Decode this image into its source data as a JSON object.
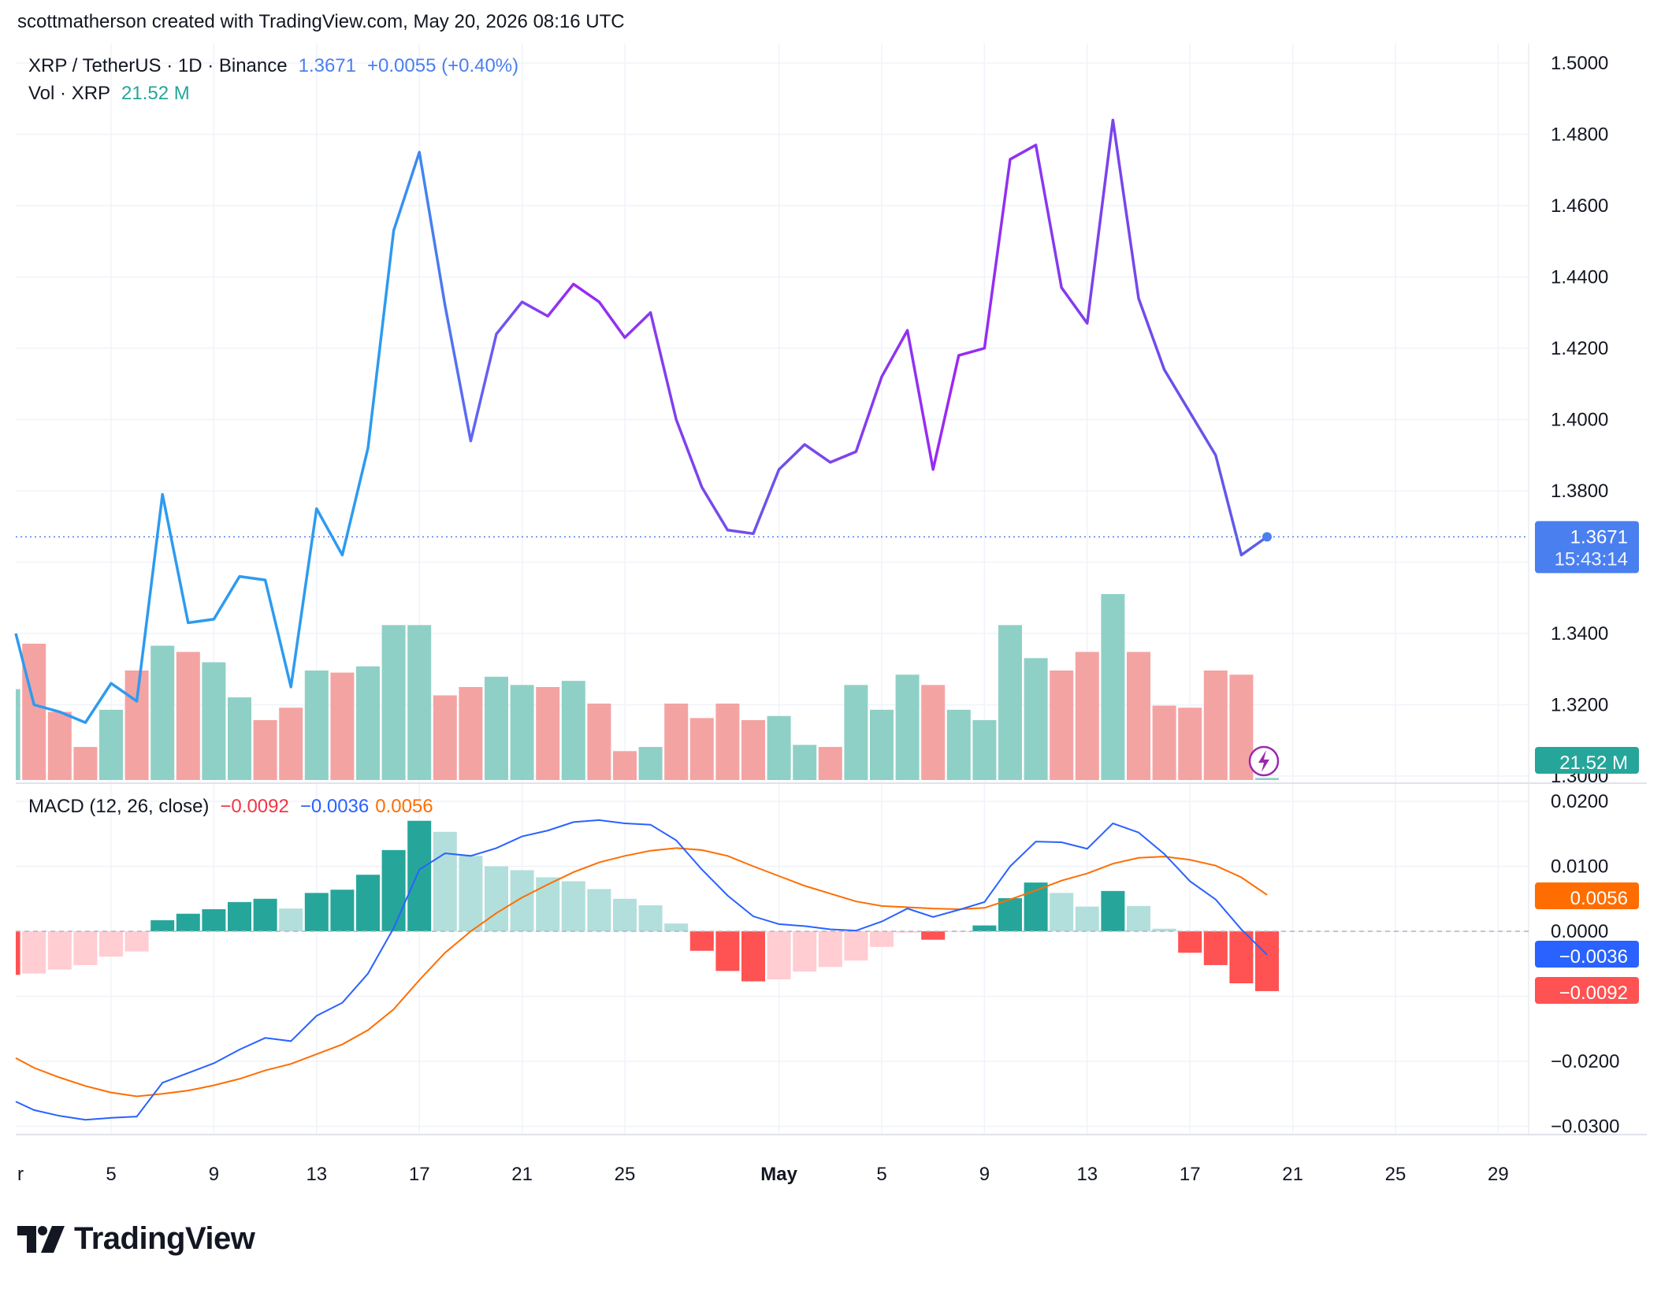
{
  "header": {
    "attribution": "scottmatherson created with TradingView.com, May 20, 2026 08:16 UTC"
  },
  "legend": {
    "symbol": "XRP / TetherUS · 1D · Binance",
    "last": "1.3671",
    "change": "+0.0055 (+0.40%)",
    "vol_label": "Vol · XRP",
    "vol_value": "21.52 M",
    "macd_label": "MACD (12, 26, close)",
    "macd_hist": "−0.0092",
    "macd_line": "−0.0036",
    "macd_signal": "0.0056"
  },
  "price_axis": {
    "ticks": [
      "1.5000",
      "1.4800",
      "1.4600",
      "1.4400",
      "1.4200",
      "1.4000",
      "1.3800",
      "1.3400",
      "1.3200",
      "1.3000"
    ],
    "last_price_label": "1.3671",
    "countdown": "15:43:14",
    "volume_label": "21.52 M"
  },
  "macd_axis": {
    "ticks": [
      "0.0200",
      "0.0100",
      "0.0000",
      "−0.0200",
      "−0.0300"
    ],
    "signal_label": "0.0056",
    "macd_label": "−0.0036",
    "hist_label": "−0.0092"
  },
  "time_axis": {
    "labels": [
      {
        "text": "r",
        "day": -4.05,
        "bold": false
      },
      {
        "text": "5",
        "day": 0,
        "bold": false
      },
      {
        "text": "9",
        "day": 4,
        "bold": false
      },
      {
        "text": "13",
        "day": 8,
        "bold": false
      },
      {
        "text": "17",
        "day": 12,
        "bold": false
      },
      {
        "text": "21",
        "day": 16,
        "bold": false
      },
      {
        "text": "25",
        "day": 20,
        "bold": false
      },
      {
        "text": "May",
        "day": 26,
        "bold": true
      },
      {
        "text": "5",
        "day": 30,
        "bold": false
      },
      {
        "text": "9",
        "day": 34,
        "bold": false
      },
      {
        "text": "13",
        "day": 38,
        "bold": false
      },
      {
        "text": "17",
        "day": 42,
        "bold": false
      },
      {
        "text": "21",
        "day": 46,
        "bold": false
      },
      {
        "text": "25",
        "day": 50,
        "bold": false
      },
      {
        "text": "29",
        "day": 54,
        "bold": false
      }
    ]
  },
  "colors": {
    "price_start": "#2d9bf0",
    "price_end": "#9c27f5",
    "vol_up": "#8fd0c6",
    "vol_down": "#f4a3a3",
    "macd_line": "#2962ff",
    "signal_line": "#ff6d00",
    "hist_pos_strong": "#26a69a",
    "hist_pos_weak": "#b2dfdb",
    "hist_neg_strong": "#ff5252",
    "hist_neg_weak": "#ffcdd2",
    "last_price_tag": "#4a7ff0",
    "volume_tag": "#26a69a"
  },
  "branding": {
    "logo_text": "TradingView"
  },
  "chart_data": [
    {
      "type": "line",
      "title": "XRP / TetherUS · 1D · Binance",
      "x": [
        "Apr 1",
        "Apr 2",
        "Apr 3",
        "Apr 4",
        "Apr 5",
        "Apr 6",
        "Apr 7",
        "Apr 8",
        "Apr 9",
        "Apr 10",
        "Apr 11",
        "Apr 12",
        "Apr 13",
        "Apr 14",
        "Apr 15",
        "Apr 16",
        "Apr 17",
        "Apr 18",
        "Apr 19",
        "Apr 20",
        "Apr 21",
        "Apr 22",
        "Apr 23",
        "Apr 24",
        "Apr 25",
        "Apr 26",
        "Apr 27",
        "Apr 28",
        "Apr 29",
        "Apr 30",
        "May 1",
        "May 2",
        "May 3",
        "May 4",
        "May 5",
        "May 6",
        "May 7",
        "May 8",
        "May 9",
        "May 10",
        "May 11",
        "May 12",
        "May 13",
        "May 14",
        "May 15",
        "May 16",
        "May 17",
        "May 18",
        "May 19",
        "May 20"
      ],
      "series": [
        {
          "name": "XRP / TetherUS",
          "values": [
            1.34,
            1.32,
            1.318,
            1.315,
            1.326,
            1.321,
            1.379,
            1.343,
            1.344,
            1.356,
            1.355,
            1.325,
            1.375,
            1.362,
            1.392,
            1.453,
            1.475,
            1.432,
            1.394,
            1.424,
            1.433,
            1.429,
            1.438,
            1.433,
            1.423,
            1.43,
            1.4,
            1.381,
            1.369,
            1.368,
            1.386,
            1.393,
            1.388,
            1.391,
            1.412,
            1.425,
            1.386,
            1.418,
            1.42,
            1.473,
            1.477,
            1.437,
            1.427,
            1.484,
            1.434,
            1.414,
            1.402,
            1.39,
            1.362,
            1.3671
          ]
        }
      ],
      "ylim": [
        1.3,
        1.5
      ],
      "last": 1.3671
    },
    {
      "type": "bar",
      "title": "Vol · XRP",
      "x": [
        "Apr 1",
        "Apr 2",
        "Apr 3",
        "Apr 4",
        "Apr 5",
        "Apr 6",
        "Apr 7",
        "Apr 8",
        "Apr 9",
        "Apr 10",
        "Apr 11",
        "Apr 12",
        "Apr 13",
        "Apr 14",
        "Apr 15",
        "Apr 16",
        "Apr 17",
        "Apr 18",
        "Apr 19",
        "Apr 20",
        "Apr 21",
        "Apr 22",
        "Apr 23",
        "Apr 24",
        "Apr 25",
        "Apr 26",
        "Apr 27",
        "Apr 28",
        "Apr 29",
        "Apr 30",
        "May 1",
        "May 2",
        "May 3",
        "May 4",
        "May 5",
        "May 6",
        "May 7",
        "May 8",
        "May 9",
        "May 10",
        "May 11",
        "May 12",
        "May 13",
        "May 14",
        "May 15",
        "May 16",
        "May 17",
        "May 18",
        "May 19",
        "May 20"
      ],
      "series": [
        {
          "name": "Vol · XRP",
          "values": [
            44,
            66,
            33,
            16,
            34,
            53,
            65,
            62,
            57,
            40,
            29,
            35,
            53,
            52,
            55,
            75,
            75,
            41,
            45,
            50,
            46,
            45,
            48,
            37,
            14,
            16,
            37,
            30,
            37,
            29,
            31,
            17,
            16,
            46,
            34,
            51,
            46,
            34,
            29,
            75,
            59,
            53,
            62,
            90,
            62,
            36,
            35,
            53,
            51,
            1
          ]
        }
      ],
      "direction": [
        "up",
        "down",
        "down",
        "down",
        "up",
        "down",
        "up",
        "down",
        "up",
        "up",
        "down",
        "down",
        "up",
        "down",
        "up",
        "up",
        "up",
        "down",
        "down",
        "up",
        "up",
        "down",
        "up",
        "down",
        "down",
        "up",
        "down",
        "down",
        "down",
        "down",
        "up",
        "up",
        "down",
        "up",
        "up",
        "up",
        "down",
        "up",
        "up",
        "up",
        "up",
        "down",
        "down",
        "up",
        "down",
        "down",
        "down",
        "down",
        "down",
        "up"
      ],
      "last": "21.52 M"
    },
    {
      "type": "line",
      "title": "MACD (12, 26, close)",
      "x": [
        "Apr 1",
        "Apr 2",
        "Apr 3",
        "Apr 4",
        "Apr 5",
        "Apr 6",
        "Apr 7",
        "Apr 8",
        "Apr 9",
        "Apr 10",
        "Apr 11",
        "Apr 12",
        "Apr 13",
        "Apr 14",
        "Apr 15",
        "Apr 16",
        "Apr 17",
        "Apr 18",
        "Apr 19",
        "Apr 20",
        "Apr 21",
        "Apr 22",
        "Apr 23",
        "Apr 24",
        "Apr 25",
        "Apr 26",
        "Apr 27",
        "Apr 28",
        "Apr 29",
        "Apr 30",
        "May 1",
        "May 2",
        "May 3",
        "May 4",
        "May 5",
        "May 6",
        "May 7",
        "May 8",
        "May 9",
        "May 10",
        "May 11",
        "May 12",
        "May 13",
        "May 14",
        "May 15",
        "May 16",
        "May 17",
        "May 18",
        "May 19",
        "May 20"
      ],
      "series": [
        {
          "name": "MACD",
          "values": [
            -0.0262,
            -0.0275,
            -0.0284,
            -0.029,
            -0.0287,
            -0.0285,
            -0.0233,
            -0.0218,
            -0.0203,
            -0.0182,
            -0.0164,
            -0.0169,
            -0.013,
            -0.011,
            -0.0065,
            0.0005,
            0.0095,
            0.012,
            0.0116,
            0.0128,
            0.0146,
            0.0155,
            0.0168,
            0.0171,
            0.0166,
            0.0164,
            0.014,
            0.0095,
            0.0055,
            0.0023,
            0.0011,
            0.0008,
            0.0003,
            0.0001,
            0.0015,
            0.0035,
            0.0022,
            0.0033,
            0.0045,
            0.01,
            0.0138,
            0.0137,
            0.0127,
            0.0166,
            0.0152,
            0.0119,
            0.0077,
            0.0049,
            0.0003,
            -0.0036
          ]
        },
        {
          "name": "Signal",
          "values": [
            -0.0195,
            -0.021,
            -0.0225,
            -0.0238,
            -0.0248,
            -0.0254,
            -0.025,
            -0.0245,
            -0.0237,
            -0.0227,
            -0.0214,
            -0.0204,
            -0.0189,
            -0.0174,
            -0.0152,
            -0.012,
            -0.0075,
            -0.0033,
            0.0,
            0.0028,
            0.0052,
            0.0072,
            0.0091,
            0.0106,
            0.0116,
            0.0124,
            0.0128,
            0.0125,
            0.0116,
            0.01,
            0.0085,
            0.007,
            0.0058,
            0.0046,
            0.0039,
            0.0037,
            0.0035,
            0.0034,
            0.0036,
            0.0049,
            0.0063,
            0.0078,
            0.0089,
            0.0104,
            0.0113,
            0.0115,
            0.011,
            0.0101,
            0.0083,
            0.0056
          ]
        },
        {
          "name": "Histogram",
          "values": [
            -0.0067,
            -0.0065,
            -0.0059,
            -0.0052,
            -0.0039,
            -0.0031,
            0.0017,
            0.0027,
            0.0034,
            0.0045,
            0.005,
            0.0035,
            0.0059,
            0.0064,
            0.0087,
            0.0125,
            0.017,
            0.0153,
            0.0116,
            0.01,
            0.0094,
            0.0083,
            0.0077,
            0.0065,
            0.005,
            0.004,
            0.0012,
            -0.003,
            -0.0061,
            -0.0077,
            -0.0074,
            -0.0062,
            -0.0055,
            -0.0045,
            -0.0024,
            -0.0002,
            -0.0013,
            -0.0001,
            0.0009,
            0.0051,
            0.0075,
            0.0059,
            0.0038,
            0.0062,
            0.0039,
            0.0004,
            -0.0033,
            -0.0052,
            -0.008,
            -0.0092
          ]
        }
      ],
      "ylim": [
        -0.034,
        0.022
      ]
    }
  ]
}
